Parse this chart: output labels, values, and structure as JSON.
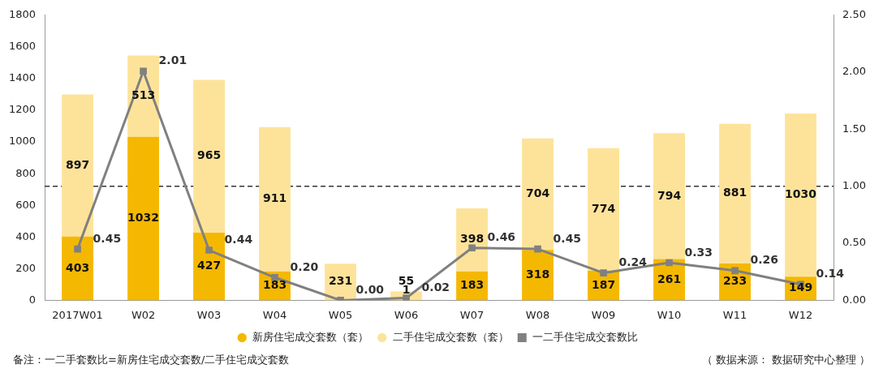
{
  "chart_data": {
    "type": "bar",
    "stacked": true,
    "categories": [
      "2017W01",
      "W02",
      "W03",
      "W04",
      "W05",
      "W06",
      "W07",
      "W08",
      "W09",
      "W10",
      "W11",
      "W12"
    ],
    "series": [
      {
        "name": "新房住宅成交套数（套）",
        "color": "#f5b800",
        "values": [
          403,
          1032,
          427,
          183,
          0,
          1,
          183,
          318,
          187,
          261,
          233,
          149
        ],
        "value_labels": [
          "403",
          "1032",
          "427",
          "183",
          null,
          "1",
          "183",
          "318",
          "187",
          "261",
          "233",
          "149"
        ]
      },
      {
        "name": "二手住宅成交套数（套）",
        "color": "#fde39a",
        "values": [
          897,
          513,
          965,
          911,
          231,
          55,
          398,
          704,
          774,
          794,
          881,
          1030
        ],
        "value_labels": [
          "897",
          "513",
          "965",
          "911",
          "231",
          "55",
          "398",
          "704",
          "774",
          "794",
          "881",
          "1030"
        ]
      },
      {
        "name": "一二手住宅成交套数比",
        "type": "line",
        "axis": "y2",
        "color": "#808080",
        "marker": "square",
        "values": [
          0.45,
          2.01,
          0.44,
          0.2,
          0,
          0.02,
          0.46,
          0.45,
          0.24,
          0.33,
          0.26,
          0.14
        ],
        "value_labels": [
          "0.45",
          "2.01",
          "0.44",
          "0.20",
          "0.00",
          "0.02",
          "0.46",
          "0.45",
          "0.24",
          "0.33",
          "0.26",
          "0.14"
        ]
      }
    ],
    "ylim": [
      0,
      1800
    ],
    "yticks": [
      0,
      200,
      400,
      600,
      800,
      1000,
      1200,
      1400,
      1600,
      1800
    ],
    "y2lim": [
      0,
      2.5
    ],
    "y2ticks": [
      {
        "value": 0,
        "label": "0.00"
      },
      {
        "value": 0.5,
        "label": "0.50"
      },
      {
        "value": 1,
        "label": "1.00"
      },
      {
        "value": 1.5,
        "label": "1.50"
      },
      {
        "value": 2,
        "label": "2.00"
      },
      {
        "value": 2.5,
        "label": "2.50"
      }
    ],
    "ref_lines": [
      {
        "axis": "y2",
        "value": 1,
        "color": "#333333",
        "line_style": "dashed"
      }
    ],
    "legend": "bottom",
    "annotations": [
      "备注：一二手套数比=新房住宅成交套数/二手住宅成交套数",
      "（ 数据来源： 数据研究中心整理 ）"
    ]
  }
}
